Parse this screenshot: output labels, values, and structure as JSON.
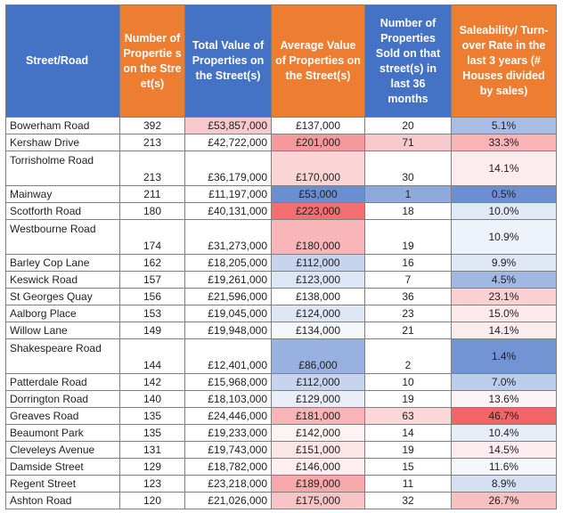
{
  "header": {
    "street": "Street/Road",
    "number": "Number of Propertie s on the Street(s)",
    "total": "Total Value of Properties on the Street(s)",
    "average": "Average Value of Properties on the Street(s)",
    "sold": "Number of Properties Sold on that street(s) in last 36 months",
    "rate": "Saleability/ Turn-over Rate in the last 3 years (# Houses divided by sales)"
  },
  "rows": [
    {
      "street": "Bowerham Road",
      "number": "392",
      "total": "£53,857,000",
      "average": "£137,000",
      "sold": "20",
      "rate": "5.1%",
      "tall": false,
      "total_bg": "#f8c9cc",
      "avg_bg": "#ffffff",
      "sold_bg": "#ffffff",
      "rate_bg": "#a8bde6"
    },
    {
      "street": "Kershaw Drive",
      "number": "213",
      "total": "£42,722,000",
      "average": "£201,000",
      "sold": "71",
      "rate": "33.3%",
      "tall": false,
      "total_bg": "#ffffff",
      "avg_bg": "#f59a9c",
      "sold_bg": "#f8c9cc",
      "rate_bg": "#f8b4b6"
    },
    {
      "street": "Torrisholme Road",
      "number": "213",
      "total": "£36,179,000",
      "average": "£170,000",
      "sold": "30",
      "rate": "14.1%",
      "tall": true,
      "total_bg": "#ffffff",
      "avg_bg": "#fbd5d6",
      "sold_bg": "#ffffff",
      "rate_bg": "#fcecee"
    },
    {
      "street": "Mainway",
      "number": "211",
      "total": "£11,197,000",
      "average": "£53,000",
      "sold": "1",
      "rate": "0.5%",
      "tall": false,
      "total_bg": "#ffffff",
      "avg_bg": "#6a8fd0",
      "sold_bg": "#8eaadc",
      "rate_bg": "#6b8fd0"
    },
    {
      "street": "Scotforth Road",
      "number": "180",
      "total": "£40,131,000",
      "average": "£223,000",
      "sold": "18",
      "rate": "10.0%",
      "tall": false,
      "total_bg": "#ffffff",
      "avg_bg": "#f26e70",
      "sold_bg": "#ffffff",
      "rate_bg": "#e2e9f6"
    },
    {
      "street": "Westbourne Road",
      "number": "174",
      "total": "£31,273,000",
      "average": "£180,000",
      "sold": "19",
      "rate": "10.9%",
      "tall": true,
      "total_bg": "#ffffff",
      "avg_bg": "#f8b6b8",
      "sold_bg": "#ffffff",
      "rate_bg": "#eef2fa"
    },
    {
      "street": "Barley Cop Lane",
      "number": "162",
      "total": "£18,205,000",
      "average": "£112,000",
      "sold": "16",
      "rate": "9.9%",
      "tall": false,
      "total_bg": "#ffffff",
      "avg_bg": "#c6d4ee",
      "sold_bg": "#ffffff",
      "rate_bg": "#e0e8f6"
    },
    {
      "street": "Keswick Road",
      "number": "157",
      "total": "£19,261,000",
      "average": "£123,000",
      "sold": "7",
      "rate": "4.5%",
      "tall": false,
      "total_bg": "#ffffff",
      "avg_bg": "#dde6f5",
      "sold_bg": "#ffffff",
      "rate_bg": "#a1b8e4"
    },
    {
      "street": "St Georges Quay",
      "number": "156",
      "total": "£21,596,000",
      "average": "£138,000",
      "sold": "36",
      "rate": "23.1%",
      "tall": false,
      "total_bg": "#ffffff",
      "avg_bg": "#ffffff",
      "sold_bg": "#ffffff",
      "rate_bg": "#fad0d2"
    },
    {
      "street": "Aalborg Place",
      "number": "153",
      "total": "£19,045,000",
      "average": "£124,000",
      "sold": "23",
      "rate": "15.0%",
      "tall": false,
      "total_bg": "#ffffff",
      "avg_bg": "#dfe7f5",
      "sold_bg": "#ffffff",
      "rate_bg": "#fde8ea"
    },
    {
      "street": "Willow Lane",
      "number": "149",
      "total": "£19,948,000",
      "average": "£134,000",
      "sold": "21",
      "rate": "14.1%",
      "tall": false,
      "total_bg": "#ffffff",
      "avg_bg": "#f4f7fc",
      "sold_bg": "#ffffff",
      "rate_bg": "#fcecee"
    },
    {
      "street": "Shakespeare Road",
      "number": "144",
      "total": "£12,401,000",
      "average": "£86,000",
      "sold": "2",
      "rate": "1.4%",
      "tall": true,
      "total_bg": "#ffffff",
      "avg_bg": "#98b1e0",
      "sold_bg": "#ffffff",
      "rate_bg": "#7394d2"
    },
    {
      "street": "Patterdale Road",
      "number": "142",
      "total": "£15,968,000",
      "average": "£112,000",
      "sold": "10",
      "rate": "7.0%",
      "tall": false,
      "total_bg": "#ffffff",
      "avg_bg": "#c6d4ee",
      "sold_bg": "#ffffff",
      "rate_bg": "#bccdec"
    },
    {
      "street": "Dorrington Road",
      "number": "140",
      "total": "£18,103,000",
      "average": "£129,000",
      "sold": "19",
      "rate": "13.6%",
      "tall": false,
      "total_bg": "#ffffff",
      "avg_bg": "#e9eef8",
      "sold_bg": "#ffffff",
      "rate_bg": "#fdf4f5"
    },
    {
      "street": "Greaves Road",
      "number": "135",
      "total": "£24,446,000",
      "average": "£181,000",
      "sold": "63",
      "rate": "46.7%",
      "tall": false,
      "total_bg": "#ffffff",
      "avg_bg": "#f8b4b6",
      "sold_bg": "#fbd7d8",
      "rate_bg": "#f26466"
    },
    {
      "street": "Beaumont Park",
      "number": "135",
      "total": "£19,233,000",
      "average": "£142,000",
      "sold": "14",
      "rate": "10.4%",
      "tall": false,
      "total_bg": "#ffffff",
      "avg_bg": "#fdf3f4",
      "sold_bg": "#ffffff",
      "rate_bg": "#e8eef8"
    },
    {
      "street": "Cleveleys Avenue",
      "number": "131",
      "total": "£19,743,000",
      "average": "£151,000",
      "sold": "19",
      "rate": "14.5%",
      "tall": false,
      "total_bg": "#ffffff",
      "avg_bg": "#fce5e6",
      "sold_bg": "#ffffff",
      "rate_bg": "#fdeced"
    },
    {
      "street": "Damside Street",
      "number": "129",
      "total": "£18,782,000",
      "average": "£146,000",
      "sold": "15",
      "rate": "11.6%",
      "tall": false,
      "total_bg": "#ffffff",
      "avg_bg": "#feeeef",
      "sold_bg": "#ffffff",
      "rate_bg": "#f5f7fc"
    },
    {
      "street": "Regent Street",
      "number": "123",
      "total": "£23,218,000",
      "average": "£189,000",
      "sold": "11",
      "rate": "8.9%",
      "tall": false,
      "total_bg": "#ffffff",
      "avg_bg": "#f7a8aa",
      "sold_bg": "#ffffff",
      "rate_bg": "#d5e0f3"
    },
    {
      "street": "Ashton Road",
      "number": "120",
      "total": "£21,026,000",
      "average": "£175,000",
      "sold": "32",
      "rate": "26.7%",
      "tall": false,
      "total_bg": "#ffffff",
      "avg_bg": "#f9c4c6",
      "sold_bg": "#ffffff",
      "rate_bg": "#f9c0c2"
    }
  ],
  "colors": {
    "header_blue": "#4472c4",
    "header_orange": "#ed7d31",
    "grid": "#7f7f7f"
  }
}
